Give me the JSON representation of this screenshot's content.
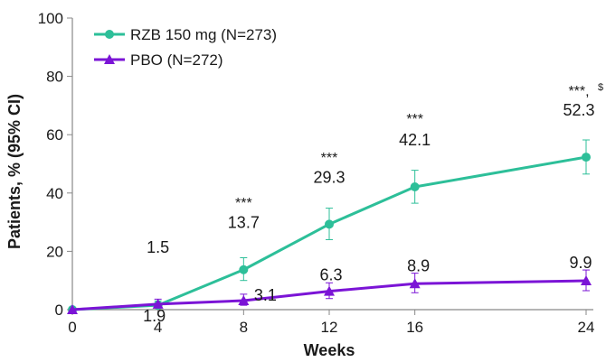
{
  "chart_data": {
    "type": "line",
    "xlabel": "Weeks",
    "ylabel": "Patients, % (95% CI)",
    "x": [
      0,
      4,
      8,
      12,
      16,
      24
    ],
    "x_ticks": [
      "0",
      "4",
      "8",
      "12",
      "16",
      "24"
    ],
    "ylim": [
      0,
      100
    ],
    "y_ticks": [
      "0",
      "20",
      "40",
      "60",
      "80",
      "100"
    ],
    "grid": false,
    "legend_position": "top-left",
    "colors": {
      "rzb": "#2dbf99",
      "pbo": "#7b14d6",
      "axis": "#888888"
    },
    "series": [
      {
        "name": "RZB 150 mg (N=273)",
        "marker": "circle",
        "values": [
          0,
          1.5,
          13.7,
          29.3,
          42.1,
          52.3
        ],
        "ci_low": [
          0,
          0.5,
          10.0,
          24.0,
          36.5,
          46.5
        ],
        "ci_high": [
          0,
          3.0,
          17.8,
          34.8,
          47.8,
          58.2
        ],
        "labels": [
          "",
          "1.5",
          "13.7",
          "29.3",
          "42.1",
          "52.3"
        ]
      },
      {
        "name": "PBO (N=272)",
        "marker": "triangle",
        "values": [
          0,
          1.9,
          3.1,
          6.3,
          8.9,
          9.9
        ],
        "ci_low": [
          0,
          0.8,
          1.5,
          3.8,
          5.8,
          6.5
        ],
        "ci_high": [
          0,
          3.6,
          5.3,
          9.2,
          12.5,
          13.6
        ],
        "labels": [
          "",
          "1.9",
          "3.1",
          "6.3",
          "8.9",
          "9.9"
        ]
      }
    ],
    "significance": [
      {
        "x": 8,
        "text": "***",
        "sup": ""
      },
      {
        "x": 12,
        "text": "***",
        "sup": ""
      },
      {
        "x": 16,
        "text": "***",
        "sup": ""
      },
      {
        "x": 24,
        "text": "***,",
        "sup": "$"
      }
    ]
  }
}
